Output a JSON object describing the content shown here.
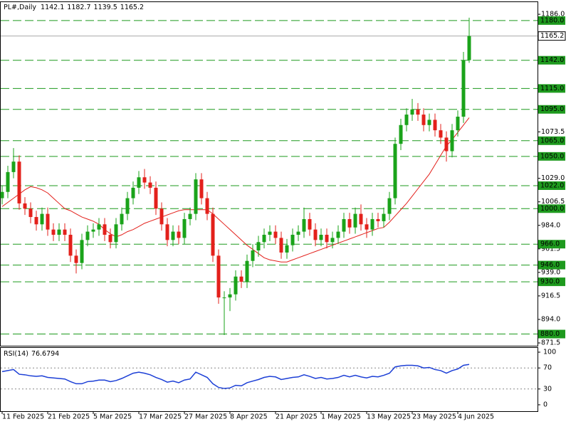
{
  "chart_data": [
    {
      "type": "candlestick",
      "title": "PL#,Daily",
      "header_values": [
        1142.1,
        1182.7,
        1139.5,
        1165.2
      ],
      "categories": [
        "11 Feb 2025",
        null,
        null,
        null,
        null,
        null,
        null,
        null,
        "21 Feb 2025",
        null,
        null,
        null,
        null,
        null,
        null,
        null,
        "5 Mar 2025",
        null,
        null,
        null,
        null,
        null,
        null,
        null,
        "17 Mar 2025",
        null,
        null,
        null,
        null,
        null,
        null,
        null,
        "27 Mar 2025",
        null,
        null,
        null,
        null,
        null,
        null,
        null,
        "8 Apr 2025",
        null,
        null,
        null,
        null,
        null,
        null,
        null,
        "21 Apr 2025",
        null,
        null,
        null,
        null,
        null,
        null,
        null,
        "1 May 2025",
        null,
        null,
        null,
        null,
        null,
        null,
        null,
        "13 May 2025",
        null,
        null,
        null,
        null,
        null,
        null,
        null,
        "23 May 2025",
        null,
        null,
        null,
        null,
        null,
        null,
        null,
        "4 Jun 2025",
        null,
        null
      ],
      "open": [
        1010,
        1016,
        1035,
        1045,
        1005,
        1000,
        992,
        985,
        995,
        980,
        975,
        980,
        975,
        955,
        948,
        970,
        978,
        980,
        985,
        975,
        968,
        985,
        995,
        1010,
        1020,
        1030,
        1025,
        1020,
        1000,
        985,
        970,
        978,
        972,
        990,
        995,
        1028,
        1010,
        995,
        955,
        915,
        915,
        918,
        935,
        930,
        950,
        960,
        968,
        975,
        978,
        972,
        958,
        965,
        975,
        978,
        990,
        980,
        970,
        975,
        968,
        972,
        978,
        990,
        982,
        995,
        985,
        980,
        990,
        988,
        995,
        1010,
        1062,
        1080,
        1090,
        1095,
        1090,
        1080,
        1085,
        1075,
        1068,
        1055,
        1075,
        1088,
        1142.1
      ],
      "high": [
        1022,
        1041,
        1058,
        1051,
        1011,
        1006,
        998,
        1001,
        1001,
        986,
        986,
        986,
        981,
        961,
        976,
        984,
        986,
        991,
        991,
        981,
        991,
        1001,
        1016,
        1026,
        1036,
        1038,
        1031,
        1026,
        1006,
        991,
        984,
        984,
        996,
        1001,
        1034,
        1034,
        1016,
        1001,
        961,
        921,
        924,
        941,
        941,
        956,
        966,
        974,
        981,
        984,
        984,
        978,
        971,
        981,
        984,
        1001,
        996,
        986,
        981,
        981,
        978,
        984,
        996,
        996,
        1001,
        1004,
        991,
        996,
        996,
        1001,
        1016,
        1068,
        1086,
        1096,
        1105,
        1101,
        1096,
        1091,
        1091,
        1081,
        1074,
        1081,
        1094,
        1150,
        1182.7
      ],
      "low": [
        1004,
        1010,
        1029,
        999,
        994,
        986,
        979,
        979,
        974,
        969,
        969,
        969,
        949,
        938,
        942,
        964,
        972,
        974,
        969,
        962,
        962,
        979,
        989,
        1004,
        1014,
        1019,
        1014,
        994,
        979,
        964,
        964,
        966,
        966,
        984,
        989,
        1004,
        989,
        949,
        909,
        879,
        902,
        912,
        924,
        924,
        944,
        954,
        962,
        969,
        966,
        952,
        952,
        959,
        969,
        972,
        974,
        964,
        964,
        962,
        962,
        966,
        972,
        976,
        976,
        979,
        972,
        974,
        982,
        982,
        989,
        1004,
        1056,
        1074,
        1084,
        1084,
        1074,
        1074,
        1069,
        1062,
        1045,
        1049,
        1069,
        1082,
        1139.5
      ],
      "close": [
        1016,
        1035,
        1045,
        1005,
        1000,
        992,
        985,
        995,
        980,
        975,
        980,
        975,
        955,
        948,
        970,
        978,
        980,
        985,
        975,
        968,
        985,
        995,
        1010,
        1020,
        1030,
        1025,
        1020,
        1000,
        985,
        970,
        978,
        972,
        990,
        995,
        1028,
        1010,
        995,
        955,
        915,
        915,
        918,
        935,
        930,
        950,
        960,
        968,
        975,
        978,
        972,
        958,
        965,
        975,
        978,
        990,
        980,
        970,
        975,
        968,
        972,
        978,
        990,
        982,
        995,
        985,
        980,
        990,
        988,
        995,
        1010,
        1062,
        1080,
        1090,
        1095,
        1090,
        1080,
        1085,
        1075,
        1068,
        1055,
        1075,
        1088,
        1142.1,
        1165.2
      ],
      "up_color": "#1aa31a",
      "down_color": "#e3201b",
      "overlay": {
        "color": "#e3201b",
        "values": [
          1002,
          1006,
          1010,
          1014,
          1018,
          1021,
          1020,
          1018,
          1015,
          1010,
          1005,
          1000,
          998,
          995,
          992,
          990,
          988,
          985,
          980,
          976,
          973,
          975,
          978,
          980,
          983,
          986,
          988,
          990,
          992,
          994,
          996,
          998,
          999,
          999,
          999,
          999,
          999,
          995,
          990,
          985,
          980,
          975,
          970,
          965,
          961,
          957,
          953,
          951,
          950,
          949,
          949,
          951,
          953,
          955,
          957,
          959,
          961,
          963,
          965,
          967,
          969,
          971,
          973,
          975,
          977,
          979,
          981,
          982,
          987,
          993,
          999,
          1005,
          1012,
          1019,
          1026,
          1033,
          1042,
          1051,
          1060,
          1066,
          1073,
          1080,
          1087
        ]
      },
      "ylim": [
        868.8,
        1198.3
      ],
      "yticks": [
        {
          "value": 1186,
          "label": "1186.0"
        },
        {
          "value": 1073.5,
          "label": "1073.5"
        },
        {
          "value": 1029,
          "label": "1029.0"
        },
        {
          "value": 1006.5,
          "label": "1006.5"
        },
        {
          "value": 984,
          "label": "984.0"
        },
        {
          "value": 961.5,
          "label": "961.5"
        },
        {
          "value": 939,
          "label": "939.0"
        },
        {
          "value": 916.5,
          "label": "916.5"
        },
        {
          "value": 894,
          "label": "894.0"
        },
        {
          "value": 871.5,
          "label": "871.5"
        }
      ],
      "levels": [
        {
          "value": 1180,
          "label": "1180.0"
        },
        {
          "value": 1142,
          "label": "1142.0"
        },
        {
          "value": 1115,
          "label": "1115.0"
        },
        {
          "value": 1095,
          "label": "1095.0"
        },
        {
          "value": 1065,
          "label": "1065.0"
        },
        {
          "value": 1050,
          "label": "1050.0"
        },
        {
          "value": 1022,
          "label": "1022.0"
        },
        {
          "value": 1000,
          "label": "1000.0"
        },
        {
          "value": 966,
          "label": "966.0"
        },
        {
          "value": 946,
          "label": "946.0"
        },
        {
          "value": 930,
          "label": "930.0"
        },
        {
          "value": 880,
          "label": "880.0"
        }
      ],
      "level_color": "#1e9a1e",
      "last_price": 1165.2
    },
    {
      "type": "line",
      "title": "RSI(14)",
      "last_value": 76.6794,
      "color": "#1c3fd6",
      "values": [
        63,
        65,
        67,
        58,
        57,
        55,
        54,
        55,
        52,
        51,
        50,
        49,
        44,
        40,
        40,
        44,
        45,
        47,
        47,
        44,
        46,
        50,
        55,
        60,
        62,
        60,
        57,
        52,
        48,
        43,
        45,
        42,
        47,
        49,
        62,
        57,
        52,
        40,
        33,
        31,
        32,
        37,
        36,
        42,
        45,
        48,
        52,
        54,
        53,
        48,
        50,
        52,
        53,
        57,
        54,
        50,
        52,
        49,
        50,
        52,
        56,
        53,
        56,
        53,
        51,
        54,
        53,
        56,
        60,
        72,
        74,
        75,
        75,
        74,
        70,
        71,
        67,
        65,
        60,
        65,
        68,
        75,
        76.6794
      ],
      "ylim": [
        -12.2,
        109.5
      ],
      "yticks": [
        100,
        70,
        30,
        0
      ],
      "levels": [
        70,
        30
      ]
    }
  ]
}
